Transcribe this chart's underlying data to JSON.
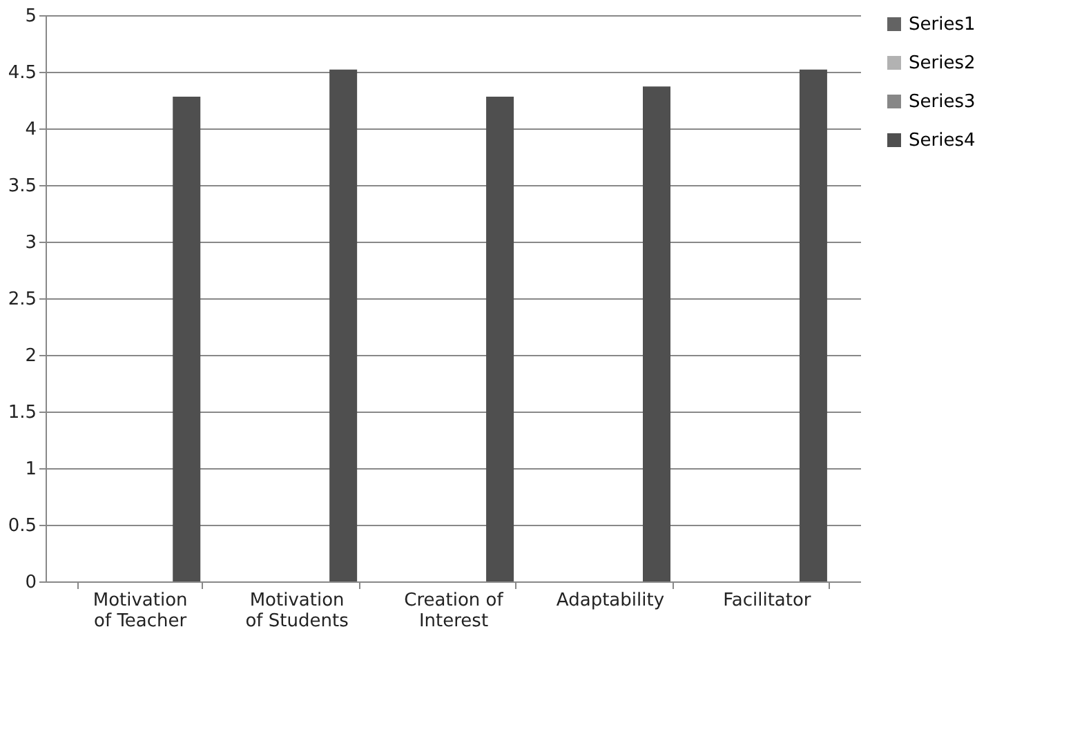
{
  "chart_data": {
    "type": "bar",
    "categories": [
      "Motivation of Teacher",
      "Motivation of Students",
      "Creation of Interest",
      "Adaptability",
      "Facilitator"
    ],
    "series": [
      {
        "name": "Series1",
        "color": "#636363",
        "values": [
          null,
          null,
          null,
          null,
          null
        ]
      },
      {
        "name": "Series2",
        "color": "#b2b2b2",
        "values": [
          null,
          null,
          null,
          null,
          null
        ]
      },
      {
        "name": "Series3",
        "color": "#878787",
        "values": [
          null,
          null,
          null,
          null,
          null
        ]
      },
      {
        "name": "Series4",
        "color": "#4f4f4f",
        "values": [
          4.28,
          4.52,
          4.28,
          4.37,
          4.52
        ]
      }
    ],
    "ylim": [
      0,
      5
    ],
    "yticks": [
      0,
      0.5,
      1,
      1.5,
      2,
      2.5,
      3,
      3.5,
      4,
      4.5,
      5
    ],
    "grid": "y",
    "legend": "right"
  }
}
